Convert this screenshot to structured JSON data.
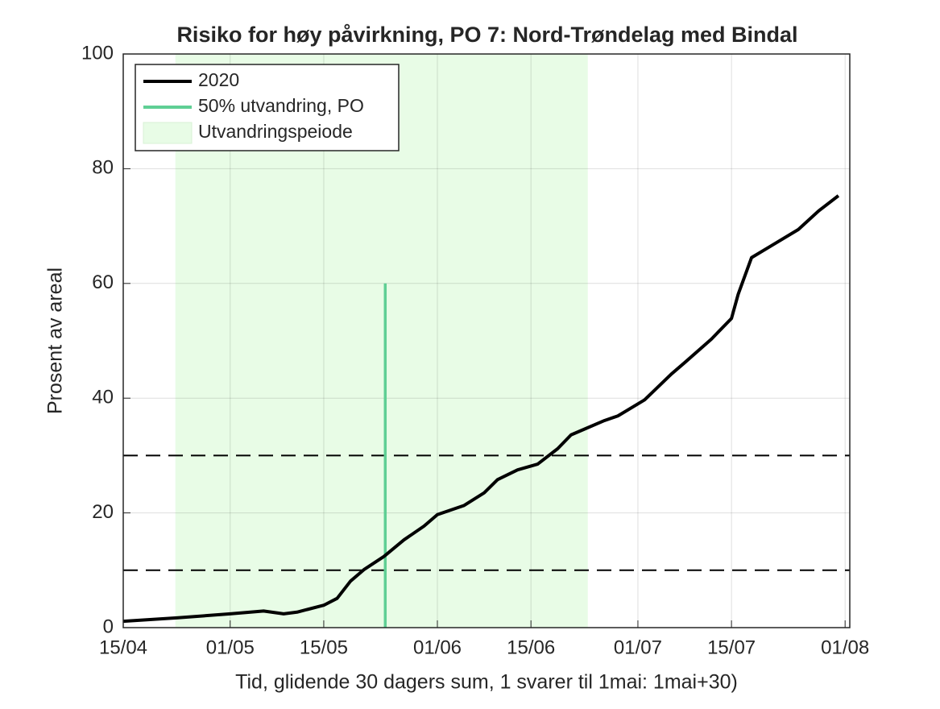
{
  "chart_data": {
    "type": "line",
    "title": "Risiko for høy påvirkning, PO 7: Nord-Trøndelag med Bindal",
    "x_label": "Tid, glidende 30 dagers sum, 1 svarer til 1mai: 1mai+30)",
    "y_label": "Prosent av areal",
    "xlim": [
      106,
      214.7
    ],
    "ylim": [
      0,
      100
    ],
    "xticks": [
      {
        "value": 106,
        "label": "15/04"
      },
      {
        "value": 122,
        "label": "01/05"
      },
      {
        "value": 136,
        "label": "15/05"
      },
      {
        "value": 153,
        "label": "01/06"
      },
      {
        "value": 167,
        "label": "15/06"
      },
      {
        "value": 183,
        "label": "01/07"
      },
      {
        "value": 197,
        "label": "15/07"
      },
      {
        "value": 214,
        "label": "01/08"
      }
    ],
    "yticks": [
      0,
      20,
      40,
      60,
      80,
      100
    ],
    "grid": true,
    "legend": "upper left",
    "series": [
      {
        "name": "2020",
        "color": "#000000",
        "x": [
          106,
          114,
          122,
          127,
          130,
          132,
          136,
          138,
          140,
          142,
          145,
          148,
          151,
          153,
          157,
          160,
          162,
          165,
          168,
          171,
          173,
          175,
          178,
          180,
          184,
          188,
          190,
          194,
          197,
          198,
          200,
          203,
          207,
          210,
          213
        ],
        "values": [
          1.1,
          1.7,
          2.4,
          2.9,
          2.4,
          2.7,
          3.9,
          5.1,
          8.1,
          10.1,
          12.4,
          15.3,
          17.7,
          19.7,
          21.3,
          23.5,
          25.8,
          27.5,
          28.5,
          31.2,
          33.6,
          34.6,
          36.1,
          36.9,
          39.7,
          44.2,
          46.2,
          50.3,
          53.9,
          58.1,
          64.5,
          66.6,
          69.4,
          72.6,
          75.3
        ]
      }
    ],
    "marker_line": {
      "name": "50% utvandring, PO",
      "color": "#5fcf94",
      "x": 145.2,
      "top": 60
    },
    "span": {
      "name": "Utvandringspeiode",
      "color": "#e8fce6",
      "x": [
        113.8,
        175.5
      ]
    },
    "hlines": [
      10,
      30
    ]
  }
}
